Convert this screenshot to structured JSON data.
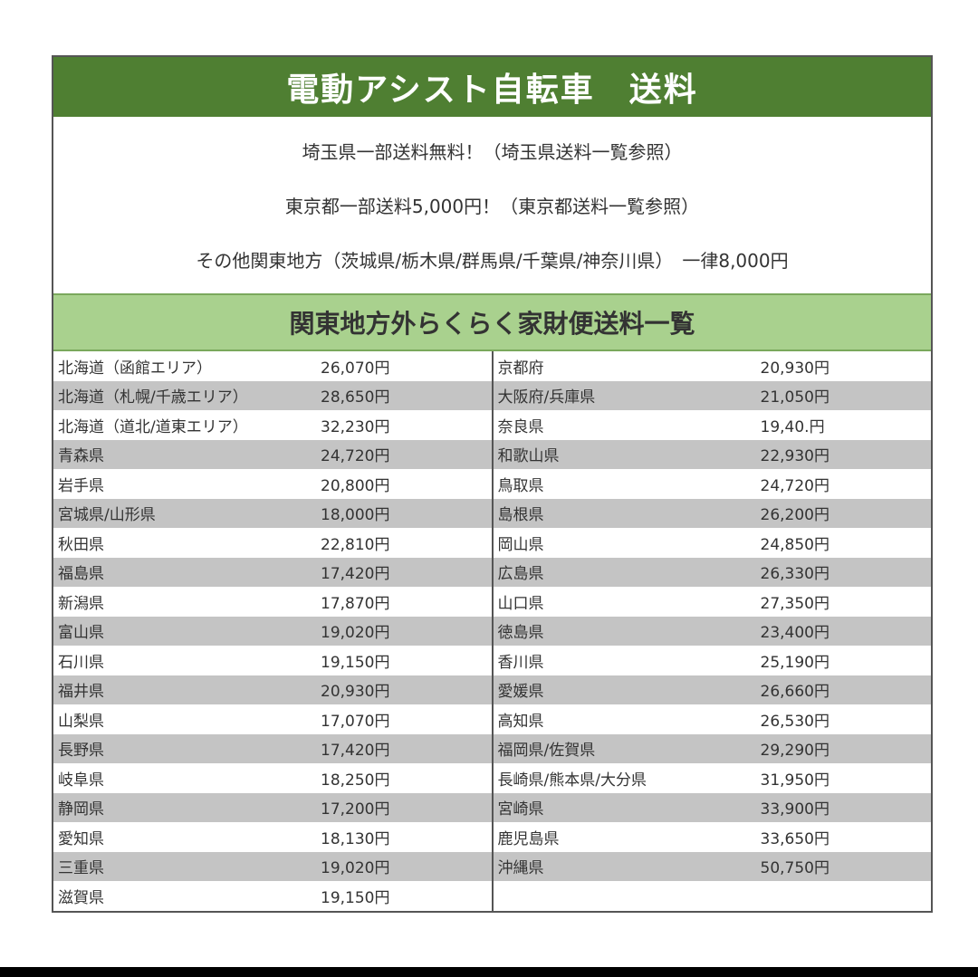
{
  "title": "電動アシスト自転車　送料",
  "info_lines": [
    "埼玉県一部送料無料！（埼玉県送料一覧参照）",
    "東京都一部送料5,000円！（東京都送料一覧参照）",
    "その他関東地方（茨城県/栃木県/群馬県/千葉県/神奈川県）　一律8,000円"
  ],
  "subtitle": "関東地方外らくらく家財便送料一覧",
  "colors": {
    "title_bg": "#4f7f32",
    "subtitle_bg": "#a9d18e",
    "stripe": "#c4c4c4"
  },
  "left_rows": [
    {
      "name": "北海道（函館エリア）",
      "price": "26,070円"
    },
    {
      "name": "北海道（札幌/千歳エリア）",
      "price": "28,650円"
    },
    {
      "name": "北海道（道北/道東エリア）",
      "price": "32,230円"
    },
    {
      "name": "青森県",
      "price": "24,720円"
    },
    {
      "name": "岩手県",
      "price": "20,800円"
    },
    {
      "name": "宮城県/山形県",
      "price": "18,000円"
    },
    {
      "name": "秋田県",
      "price": "22,810円"
    },
    {
      "name": "福島県",
      "price": "17,420円"
    },
    {
      "name": "新潟県",
      "price": "17,870円"
    },
    {
      "name": "富山県",
      "price": "19,020円"
    },
    {
      "name": "石川県",
      "price": "19,150円"
    },
    {
      "name": "福井県",
      "price": "20,930円"
    },
    {
      "name": "山梨県",
      "price": "17,070円"
    },
    {
      "name": "長野県",
      "price": "17,420円"
    },
    {
      "name": "岐阜県",
      "price": "18,250円"
    },
    {
      "name": "静岡県",
      "price": "17,200円"
    },
    {
      "name": "愛知県",
      "price": "18,130円"
    },
    {
      "name": "三重県",
      "price": "19,020円"
    },
    {
      "name": "滋賀県",
      "price": "19,150円"
    }
  ],
  "right_rows": [
    {
      "name": "京都府",
      "price": "20,930円"
    },
    {
      "name": "大阪府/兵庫県",
      "price": "21,050円"
    },
    {
      "name": "奈良県",
      "price": "19,40.円"
    },
    {
      "name": "和歌山県",
      "price": "22,930円"
    },
    {
      "name": "鳥取県",
      "price": "24,720円"
    },
    {
      "name": "島根県",
      "price": "26,200円"
    },
    {
      "name": "岡山県",
      "price": "24,850円"
    },
    {
      "name": "広島県",
      "price": "26,330円"
    },
    {
      "name": "山口県",
      "price": "27,350円"
    },
    {
      "name": "徳島県",
      "price": "23,400円"
    },
    {
      "name": "香川県",
      "price": "25,190円"
    },
    {
      "name": "愛媛県",
      "price": "26,660円"
    },
    {
      "name": "高知県",
      "price": "26,530円"
    },
    {
      "name": "福岡県/佐賀県",
      "price": "29,290円"
    },
    {
      "name": "長崎県/熊本県/大分県",
      "price": "31,950円"
    },
    {
      "name": "宮崎県",
      "price": "33,900円"
    },
    {
      "name": "鹿児島県",
      "price": "33,650円"
    },
    {
      "name": "沖縄県",
      "price": "50,750円"
    }
  ]
}
